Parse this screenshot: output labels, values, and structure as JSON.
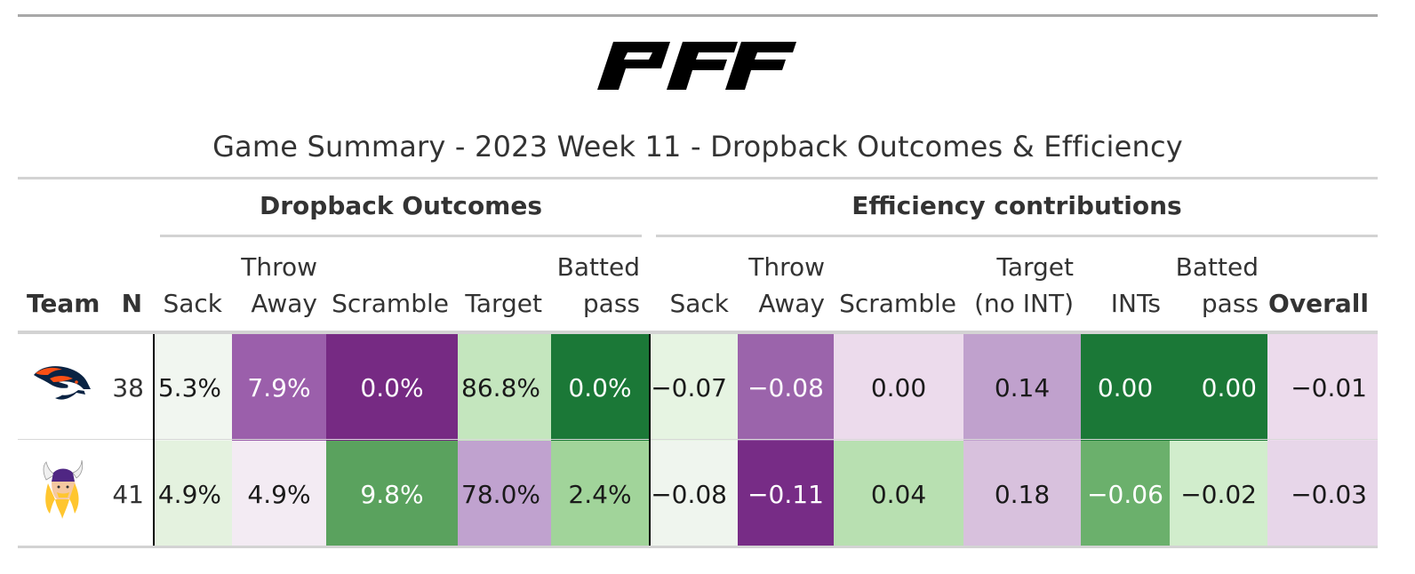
{
  "title": "Game Summary - 2023 Week 11 - Dropback Outcomes & Efficiency",
  "logo_text": "PFF",
  "spanners": {
    "outcomes": "Dropback Outcomes",
    "efficiency": "Efficiency contributions"
  },
  "columns": {
    "team": "Team",
    "n": "N",
    "sack": "Sack",
    "throw_away": [
      "Throw",
      "Away"
    ],
    "scramble": "Scramble",
    "target": "Target",
    "batted_pass": [
      "Batted",
      "pass"
    ],
    "eff_sack": "Sack",
    "eff_throw_away": [
      "Throw",
      "Away"
    ],
    "eff_scramble": "Scramble",
    "eff_target": [
      "Target",
      "(no INT)"
    ],
    "eff_ints": "INTs",
    "eff_batted_pass": [
      "Batted",
      "pass"
    ],
    "overall": "Overall"
  },
  "rows": [
    {
      "team_icon": "broncos-logo-icon",
      "n": "38",
      "sack": "5.3%",
      "throw_away": "7.9%",
      "scramble": "0.0%",
      "target": "86.8%",
      "batted_pass": "0.0%",
      "eff_sack": "−0.07",
      "eff_throw_away": "−0.08",
      "eff_scramble": "0.00",
      "eff_target": "0.14",
      "eff_ints": "0.00",
      "eff_batted_pass": "0.00",
      "overall": "−0.01"
    },
    {
      "team_icon": "vikings-logo-icon",
      "n": "41",
      "sack": "4.9%",
      "throw_away": "4.9%",
      "scramble": "9.8%",
      "target": "78.0%",
      "batted_pass": "2.4%",
      "eff_sack": "−0.08",
      "eff_throw_away": "−0.11",
      "eff_scramble": "0.04",
      "eff_target": "0.18",
      "eff_ints": "−0.06",
      "eff_batted_pass": "−0.02",
      "overall": "−0.03"
    }
  ],
  "colors": {
    "row0": {
      "sack": "#f1f6f0",
      "throw_away": "#9b5fab",
      "scramble": "#762a83",
      "target": "#c4e6be",
      "batted_pass": "#1b7837",
      "eff_sack": "#e6f4e2",
      "eff_throw_away": "#9b64ab",
      "eff_scramble": "#ecdbec",
      "eff_target": "#c0a1cd",
      "eff_ints": "#1b7837",
      "eff_batted_pass": "#1b7837",
      "overall": "#ecdbec"
    },
    "row1": {
      "sack": "#e4f2df",
      "throw_away": "#f3ebf3",
      "scramble": "#5aa25e",
      "target": "#c0a2cf",
      "batted_pass": "#a1d49a",
      "eff_sack": "#eff5ee",
      "eff_throw_away": "#772c86",
      "eff_scramble": "#b8e0b1",
      "eff_target": "#d8c1dd",
      "eff_ints": "#6bb06c",
      "eff_batted_pass": "#d1edcc",
      "overall": "#e7d6e9"
    }
  },
  "text_colors": {
    "light": "#ffffff",
    "dark": "#1a1a1a"
  }
}
